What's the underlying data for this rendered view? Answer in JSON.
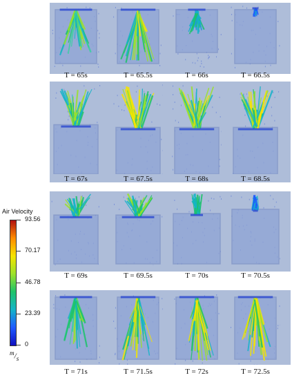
{
  "rows": [
    {
      "frames": [
        {
          "caption": "T = 65s",
          "state": "jet-full"
        },
        {
          "caption": "T = 65.5s",
          "state": "jet-full-hot"
        },
        {
          "caption": "T = 66s",
          "state": "jet-short"
        },
        {
          "caption": "T = 66.5s",
          "state": "jet-tiny"
        }
      ]
    },
    {
      "frames": [
        {
          "caption": "T = 67s",
          "state": "up-green"
        },
        {
          "caption": "T = 67.5s",
          "state": "up-yellow"
        },
        {
          "caption": "T = 68s",
          "state": "up-yellow"
        },
        {
          "caption": "T = 68.5s",
          "state": "up-yellow"
        }
      ]
    },
    {
      "frames": [
        {
          "caption": "T = 69s",
          "state": "up-green-high"
        },
        {
          "caption": "T = 69.5s",
          "state": "up-green-high"
        },
        {
          "caption": "T = 70s",
          "state": "up-small"
        },
        {
          "caption": "T = 70.5s",
          "state": "up-tiny"
        }
      ]
    },
    {
      "frames": [
        {
          "caption": "T = 71s",
          "state": "jet-full"
        },
        {
          "caption": "T = 71.5s",
          "state": "jet-full-hot"
        },
        {
          "caption": "T = 72s",
          "state": "jet-full-hot"
        },
        {
          "caption": "T = 72.5s",
          "state": "jet-full-hot"
        }
      ]
    }
  ],
  "legend": {
    "title": "Air Velocity",
    "ticks": [
      "93.56",
      "70.17",
      "46.78",
      "23.39",
      "0"
    ],
    "unit_num": "m",
    "unit_den": "s",
    "colormap": [
      "#b01010",
      "#ff8c00",
      "#f5e400",
      "#9be22a",
      "#1ec36a",
      "#14b4c8",
      "#1e5aff",
      "#1010c0"
    ]
  }
}
